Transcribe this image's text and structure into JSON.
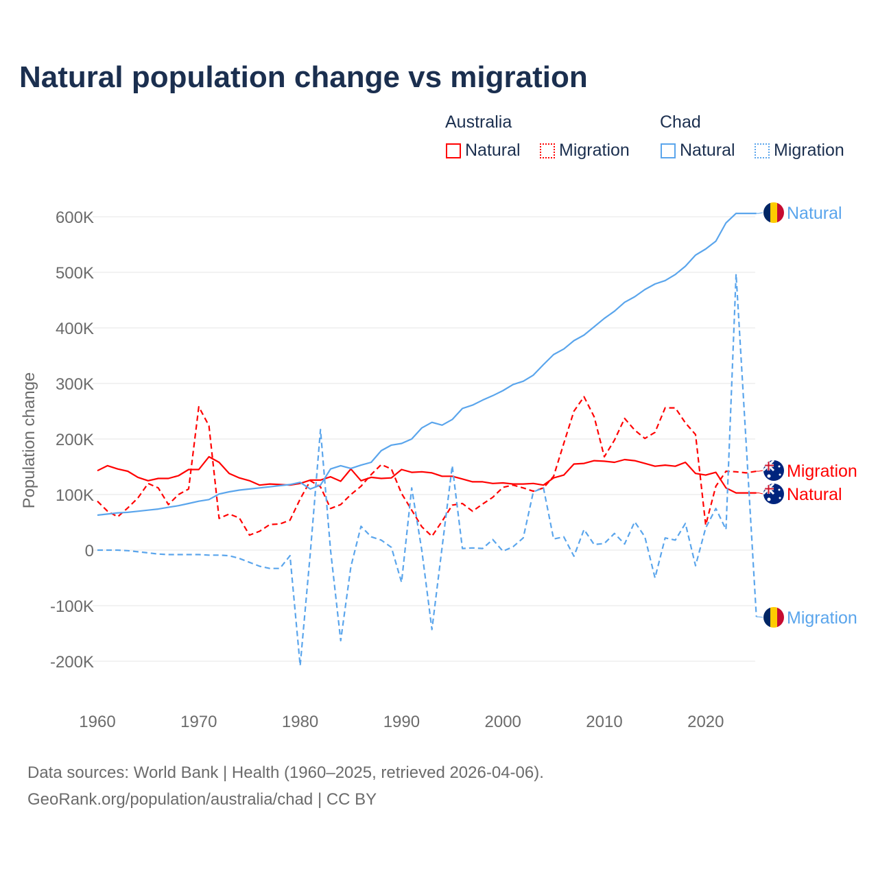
{
  "chart_data": {
    "type": "line",
    "title": "Natural population change vs migration",
    "ylabel": "Population change",
    "xlabel": "",
    "xlim": [
      1960,
      2025
    ],
    "ylim": [
      -250000,
      650000
    ],
    "x_ticks": [
      1960,
      1970,
      1980,
      1990,
      2000,
      2010,
      2020
    ],
    "x_tick_labels": [
      "1960",
      "1970",
      "1980",
      "1990",
      "2000",
      "2010",
      "2020"
    ],
    "y_ticks": [
      -200000,
      -100000,
      0,
      100000,
      200000,
      300000,
      400000,
      500000,
      600000
    ],
    "y_tick_labels": [
      "-200K",
      "-100K",
      "0",
      "100K",
      "200K",
      "300K",
      "400K",
      "500K",
      "600K"
    ],
    "grid": true,
    "legend": {
      "placement": "top-right",
      "groups": [
        {
          "label": "Australia",
          "items": [
            {
              "label": "Natural",
              "style": "solid",
              "color": "#ff0000"
            },
            {
              "label": "Migration",
              "style": "dotted",
              "color": "#ff0000"
            }
          ]
        },
        {
          "label": "Chad",
          "items": [
            {
              "label": "Natural",
              "style": "solid",
              "color": "#5aa5ec"
            },
            {
              "label": "Migration",
              "style": "dotted",
              "color": "#5aa5ec"
            }
          ]
        }
      ]
    },
    "x_start": 1960,
    "series": [
      {
        "name": "Australia Natural",
        "end_label": "Natural",
        "flag": "australia",
        "color": "#ff0000",
        "dash": false,
        "values": [
          143,
          152,
          146,
          142,
          131,
          125,
          129,
          129,
          134,
          145,
          145,
          168,
          158,
          138,
          130,
          125,
          117,
          119,
          118,
          117,
          120,
          126,
          126,
          132,
          124,
          146,
          125,
          131,
          129,
          130,
          145,
          140,
          141,
          139,
          133,
          133,
          128,
          123,
          123,
          120,
          121,
          119,
          119,
          120,
          117,
          130,
          135,
          155,
          156,
          161,
          160,
          158,
          163,
          161,
          156,
          151,
          153,
          151,
          158,
          138,
          135,
          140,
          112,
          103,
          103,
          103
        ]
      },
      {
        "name": "Australia Migration",
        "end_label": "Migration",
        "flag": "australia",
        "color": "#ff0000",
        "dash": true,
        "values": [
          88,
          70,
          60,
          76,
          94,
          120,
          112,
          82,
          100,
          110,
          258,
          224,
          57,
          65,
          58,
          27,
          34,
          46,
          47,
          54,
          92,
          125,
          114,
          75,
          82,
          100,
          115,
          136,
          154,
          146,
          102,
          72,
          42,
          25,
          52,
          81,
          84,
          70,
          83,
          95,
          113,
          117,
          112,
          106,
          112,
          133,
          192,
          250,
          276,
          240,
          168,
          198,
          237,
          216,
          201,
          212,
          256,
          256,
          229,
          208,
          45,
          115,
          142,
          141,
          139,
          142
        ]
      },
      {
        "name": "Chad Natural",
        "end_label": "Natural",
        "flag": "chad",
        "color": "#5aa5ec",
        "dash": false,
        "values": [
          63,
          65,
          67,
          68,
          70,
          72,
          74,
          77,
          80,
          84,
          88,
          91,
          101,
          105,
          108,
          110,
          112,
          114,
          116,
          118,
          122,
          110,
          117,
          146,
          152,
          147,
          153,
          158,
          179,
          189,
          192,
          200,
          220,
          230,
          225,
          235,
          255,
          261,
          270,
          278,
          287,
          298,
          304,
          315,
          334,
          352,
          362,
          377,
          387,
          402,
          417,
          430,
          446,
          456,
          469,
          479,
          485,
          496,
          511,
          531,
          542,
          556,
          589,
          606,
          606,
          606
        ]
      },
      {
        "name": "Chad Migration",
        "end_label": "Migration",
        "flag": "chad",
        "color": "#5aa5ec",
        "dash": true,
        "values": [
          0,
          0,
          0,
          -1,
          -3,
          -5,
          -7,
          -8,
          -8,
          -8,
          -8,
          -9,
          -9,
          -10,
          -15,
          -22,
          -29,
          -33,
          -33,
          -10,
          -208,
          -5,
          217,
          0,
          -163,
          -30,
          43,
          24,
          18,
          5,
          -58,
          112,
          -1,
          -143,
          5,
          152,
          3,
          4,
          3,
          19,
          -2,
          6,
          22,
          105,
          112,
          20,
          24,
          -11,
          37,
          10,
          12,
          30,
          11,
          51,
          24,
          -50,
          22,
          18,
          48,
          -28,
          40,
          75,
          37,
          497,
          190,
          -120
        ]
      }
    ],
    "value_unit": "thousands"
  },
  "footer": {
    "line1": "Data sources: World Bank | Health (1960–2025, retrieved 2026-04-06).",
    "line2": "GeoRank.org/population/australia/chad | CC BY"
  }
}
